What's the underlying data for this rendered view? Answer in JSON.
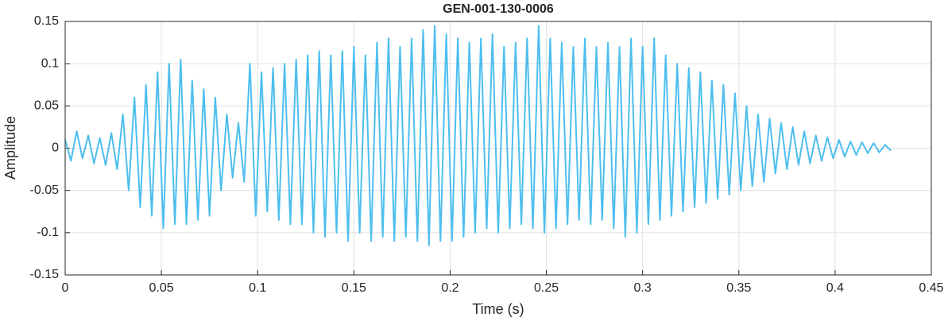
{
  "chart_data": {
    "type": "line",
    "title": "GEN-001-130-0006",
    "x_label": "Time (s)",
    "y_label": "Amplitude",
    "x": [
      0,
      0.003,
      0.006,
      0.009,
      0.012,
      0.015,
      0.018,
      0.021,
      0.024,
      0.027,
      0.03,
      0.033,
      0.036,
      0.039,
      0.042,
      0.045,
      0.048,
      0.051,
      0.054,
      0.057,
      0.06,
      0.063,
      0.066,
      0.069,
      0.072,
      0.075,
      0.078,
      0.081,
      0.084,
      0.087,
      0.09,
      0.093,
      0.096,
      0.099,
      0.102,
      0.105,
      0.108,
      0.111,
      0.114,
      0.117,
      0.12,
      0.123,
      0.126,
      0.129,
      0.132,
      0.135,
      0.138,
      0.141,
      0.144,
      0.147,
      0.15,
      0.153,
      0.156,
      0.159,
      0.162,
      0.165,
      0.168,
      0.171,
      0.174,
      0.177,
      0.18,
      0.183,
      0.186,
      0.189,
      0.192,
      0.195,
      0.198,
      0.201,
      0.204,
      0.207,
      0.21,
      0.213,
      0.216,
      0.219,
      0.222,
      0.225,
      0.228,
      0.231,
      0.234,
      0.237,
      0.24,
      0.243,
      0.246,
      0.249,
      0.252,
      0.255,
      0.258,
      0.261,
      0.264,
      0.267,
      0.27,
      0.273,
      0.276,
      0.279,
      0.282,
      0.285,
      0.288,
      0.291,
      0.294,
      0.297,
      0.3,
      0.303,
      0.306,
      0.309,
      0.312,
      0.315,
      0.318,
      0.321,
      0.324,
      0.327,
      0.33,
      0.333,
      0.336,
      0.339,
      0.342,
      0.345,
      0.348,
      0.351,
      0.354,
      0.357,
      0.36,
      0.363,
      0.366,
      0.369,
      0.372,
      0.375,
      0.378,
      0.381,
      0.384,
      0.387,
      0.39,
      0.393,
      0.396,
      0.399,
      0.402,
      0.405,
      0.408,
      0.411,
      0.414,
      0.417,
      0.42,
      0.423,
      0.426,
      0.429
    ],
    "series": [
      {
        "color": "#4dbeee",
        "values": [
          0.01,
          -0.015,
          0.02,
          -0.012,
          0.015,
          -0.018,
          0.012,
          -0.02,
          0.018,
          -0.025,
          0.04,
          -0.05,
          0.06,
          -0.07,
          0.075,
          -0.08,
          0.09,
          -0.095,
          0.1,
          -0.09,
          0.105,
          -0.09,
          0.08,
          -0.085,
          0.07,
          -0.08,
          0.06,
          -0.05,
          0.04,
          -0.035,
          0.03,
          -0.04,
          0.1,
          -0.08,
          0.09,
          -0.075,
          0.095,
          -0.085,
          0.1,
          -0.09,
          0.105,
          -0.09,
          0.11,
          -0.1,
          0.115,
          -0.105,
          0.11,
          -0.1,
          0.115,
          -0.11,
          0.12,
          -0.1,
          0.11,
          -0.11,
          0.125,
          -0.105,
          0.13,
          -0.11,
          0.12,
          -0.105,
          0.13,
          -0.11,
          0.14,
          -0.115,
          0.145,
          -0.11,
          0.135,
          -0.11,
          0.13,
          -0.105,
          0.125,
          -0.1,
          0.13,
          -0.095,
          0.135,
          -0.1,
          0.12,
          -0.095,
          0.125,
          -0.09,
          0.13,
          -0.095,
          0.145,
          -0.1,
          0.13,
          -0.095,
          0.125,
          -0.09,
          0.12,
          -0.085,
          0.13,
          -0.09,
          0.12,
          -0.085,
          0.125,
          -0.095,
          0.12,
          -0.105,
          0.13,
          -0.1,
          0.12,
          -0.09,
          0.13,
          -0.085,
          0.11,
          -0.08,
          0.1,
          -0.075,
          0.095,
          -0.07,
          0.09,
          -0.065,
          0.08,
          -0.06,
          0.075,
          -0.055,
          0.065,
          -0.05,
          0.05,
          -0.045,
          0.04,
          -0.04,
          0.035,
          -0.03,
          0.03,
          -0.025,
          0.025,
          -0.02,
          0.02,
          -0.018,
          0.015,
          -0.015,
          0.013,
          -0.012,
          0.01,
          -0.01,
          0.008,
          -0.008,
          0.007,
          -0.006,
          0.006,
          -0.005,
          0.004,
          -0.003
        ]
      }
    ],
    "xlim": [
      0,
      0.45
    ],
    "xticks": [
      0,
      0.05,
      0.1,
      0.15,
      0.2,
      0.25,
      0.3,
      0.35,
      0.4,
      0.45
    ],
    "ylim": [
      -0.15,
      0.15
    ],
    "yticks": [
      -0.15,
      -0.1,
      -0.05,
      0,
      0.05,
      0.1,
      0.15
    ],
    "grid": true
  }
}
